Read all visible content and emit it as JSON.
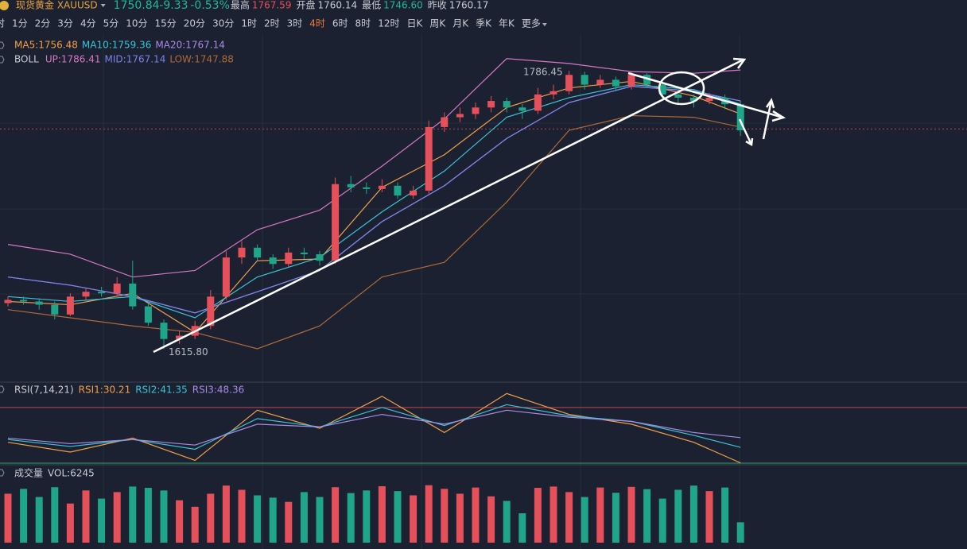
{
  "header": {
    "symbol": "现货黄金 XAUUSD",
    "price": 1750.84,
    "change": -9.33,
    "change_pct": "-0.53%",
    "stats": [
      {
        "label": "最高",
        "value": "1767.59"
      },
      {
        "label": "开盘",
        "value": "1760.14"
      },
      {
        "label": "最低",
        "value": "1746.60"
      },
      {
        "label": "昨收",
        "value": "1760.17"
      }
    ]
  },
  "timeframes": [
    "时",
    "1分",
    "2分",
    "3分",
    "4分",
    "5分",
    "10分",
    "15分",
    "20分",
    "30分",
    "1时",
    "2时",
    "3时",
    "4时",
    "6时",
    "8时",
    "12时",
    "日K",
    "周K",
    "月K",
    "季K",
    "年K",
    "更多"
  ],
  "active_timeframe": 13,
  "chart_data": [
    {
      "type": "candlestick",
      "up_color": "#e5505a",
      "down_color": "#1fa58a",
      "ylim": [
        1596,
        1808
      ],
      "ohlc": [
        [
          1644,
          1648,
          1642,
          1646
        ],
        [
          1646,
          1648,
          1643,
          1645
        ],
        [
          1645,
          1647,
          1640,
          1643
        ],
        [
          1643,
          1645,
          1634,
          1637
        ],
        [
          1637,
          1650,
          1636,
          1648
        ],
        [
          1648,
          1653,
          1646,
          1651
        ],
        [
          1651,
          1654,
          1648,
          1650
        ],
        [
          1650,
          1660,
          1648,
          1656
        ],
        [
          1656,
          1670,
          1640,
          1642
        ],
        [
          1642,
          1644,
          1630,
          1632
        ],
        [
          1632,
          1634,
          1615.8,
          1622
        ],
        [
          1622,
          1627,
          1619,
          1624
        ],
        [
          1624,
          1633,
          1622,
          1630
        ],
        [
          1630,
          1652,
          1628,
          1648
        ],
        [
          1648,
          1676,
          1646,
          1672
        ],
        [
          1672,
          1682,
          1668,
          1678
        ],
        [
          1678,
          1680,
          1670,
          1672
        ],
        [
          1672,
          1674,
          1665,
          1668
        ],
        [
          1668,
          1678,
          1666,
          1675
        ],
        [
          1675,
          1678,
          1671,
          1674
        ],
        [
          1674,
          1676,
          1667,
          1670
        ],
        [
          1670,
          1721,
          1668,
          1717
        ],
        [
          1717,
          1722,
          1712,
          1715
        ],
        [
          1715,
          1718,
          1711,
          1714
        ],
        [
          1714,
          1720,
          1712,
          1716
        ],
        [
          1716,
          1718,
          1708,
          1710
        ],
        [
          1710,
          1716,
          1708,
          1713
        ],
        [
          1713,
          1756,
          1711,
          1752
        ],
        [
          1752,
          1761,
          1749,
          1758
        ],
        [
          1758,
          1764,
          1755,
          1760
        ],
        [
          1760,
          1767,
          1757,
          1764
        ],
        [
          1764,
          1771,
          1761,
          1768
        ],
        [
          1768,
          1770,
          1761,
          1764
        ],
        [
          1764,
          1766,
          1757,
          1762
        ],
        [
          1762,
          1776,
          1760,
          1772
        ],
        [
          1772,
          1778,
          1769,
          1774
        ],
        [
          1774,
          1786.45,
          1772,
          1784
        ],
        [
          1784,
          1786,
          1775,
          1778
        ],
        [
          1778,
          1784,
          1776,
          1781
        ],
        [
          1781,
          1783,
          1774,
          1777
        ],
        [
          1777,
          1786,
          1775,
          1784
        ],
        [
          1784,
          1785,
          1776,
          1778
        ],
        [
          1778,
          1780,
          1769,
          1772
        ],
        [
          1772,
          1774,
          1766,
          1770
        ],
        [
          1770,
          1772,
          1764,
          1768
        ],
        [
          1768,
          1773,
          1766,
          1770
        ],
        [
          1770,
          1772,
          1763,
          1766
        ],
        [
          1766,
          1768,
          1746.6,
          1750
        ]
      ],
      "annotations": [
        {
          "value": 1786.45,
          "label": "1786.45"
        },
        {
          "value": 1615.8,
          "label": "1615.80"
        }
      ],
      "x": [
        0,
        4,
        8,
        12,
        16,
        20,
        24,
        28,
        32,
        36,
        40,
        44,
        47
      ],
      "legend_rows": [
        [
          0,
          1,
          2
        ],
        [
          3,
          4,
          5
        ]
      ],
      "boll_label": "BOLL",
      "series": [
        {
          "name": "MA5:1756.48",
          "color": "#f0a04b",
          "values": [
            1645,
            1643,
            1650,
            1626,
            1670,
            1671,
            1715,
            1735,
            1764,
            1776,
            1780,
            1771,
            1760
          ]
        },
        {
          "name": "MA10:1759.36",
          "color": "#3bc4d8",
          "values": [
            1648,
            1645,
            1648,
            1635,
            1660,
            1672,
            1700,
            1725,
            1758,
            1770,
            1778,
            1775,
            1766
          ]
        },
        {
          "name": "MA20:1767.14",
          "color": "#a98ae6",
          "values": [
            1660,
            1655,
            1648,
            1638,
            1651,
            1664,
            1694,
            1716,
            1745,
            1767,
            1777,
            1774,
            1768
          ]
        },
        {
          "name": "UP:1786.41",
          "color": "#d877c4",
          "values": [
            1680,
            1674,
            1660,
            1664,
            1689,
            1701,
            1728,
            1757,
            1794,
            1791,
            1786,
            1785,
            1787
          ]
        },
        {
          "name": "MID:1767.14",
          "color": "#7b83e8",
          "values": [
            1660,
            1655,
            1648,
            1638,
            1651,
            1664,
            1694,
            1716,
            1745,
            1767,
            1777,
            1774,
            1768
          ]
        },
        {
          "name": "LOW:1747.88",
          "color": "#b0693a",
          "values": [
            1640,
            1635,
            1630,
            1626,
            1616,
            1630,
            1660,
            1669,
            1706,
            1750,
            1759,
            1758,
            1752
          ]
        }
      ]
    },
    {
      "type": "line",
      "title": "RSI(7,14,21)",
      "ylim": [
        30,
        87
      ],
      "levels": [
        70,
        30
      ],
      "level_colors": [
        "#c0474f",
        "#2fa86a"
      ],
      "x": [
        0,
        4,
        8,
        12,
        16,
        20,
        24,
        28,
        32,
        36,
        40,
        44,
        47
      ],
      "series": [
        {
          "name": "RSI1:30.21",
          "color": "#f0a04b",
          "values": [
            45,
            38,
            48,
            32,
            68,
            55,
            78,
            52,
            80,
            65,
            58,
            45,
            30.21
          ]
        },
        {
          "name": "RSI2:41.35",
          "color": "#3bc4d8",
          "values": [
            47,
            42,
            47,
            40,
            62,
            56,
            70,
            57,
            72,
            64,
            60,
            50,
            41.35
          ]
        },
        {
          "name": "RSI3:48.36",
          "color": "#a98ae6",
          "values": [
            48,
            44,
            47,
            43,
            58,
            56,
            65,
            58,
            68,
            63,
            60,
            52,
            48.36
          ]
        }
      ]
    },
    {
      "type": "bar",
      "title": "成交量",
      "ylim": [
        0,
        19000
      ],
      "series": [
        {
          "name": "VOL:6245",
          "values": [
            15000,
            16500,
            14000,
            17000,
            12000,
            16000,
            13500,
            15500,
            17200,
            16800,
            16000,
            13000,
            11000,
            15000,
            17500,
            16200,
            14500,
            13800,
            12500,
            15500,
            14000,
            17000,
            15200,
            16000,
            17300,
            15800,
            14500,
            17600,
            16500,
            15000,
            16900,
            14200,
            12800,
            9000,
            16800,
            17200,
            15500,
            14000,
            16900,
            15300,
            17100,
            16400,
            13500,
            16200,
            17500,
            15800,
            16900,
            6245
          ]
        }
      ]
    }
  ]
}
